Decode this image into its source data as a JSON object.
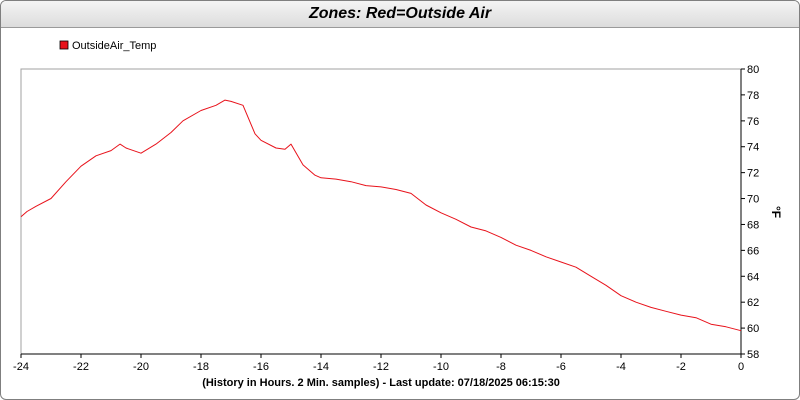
{
  "window": {
    "title": "Zones: Red=Outside Air"
  },
  "colors": {
    "series": "#e8121b",
    "grid": "#c8c8c8",
    "axis": "#000000"
  },
  "chart_data": {
    "type": "line",
    "title": "Zones: Red=Outside Air",
    "xlabel": "(History in Hours. 2 Min. samples) - Last update: 07/18/2025 06:15:30",
    "ylabel": "°F",
    "xlim": [
      -24,
      0
    ],
    "ylim": [
      58,
      80
    ],
    "x_ticks": [
      -24,
      -22,
      -20,
      -18,
      -16,
      -14,
      -12,
      -10,
      -8,
      -6,
      -4,
      -2,
      0
    ],
    "y_ticks": [
      58,
      60,
      62,
      64,
      66,
      68,
      70,
      72,
      74,
      76,
      78,
      80
    ],
    "grid": true,
    "legend_position": "top-left",
    "series": [
      {
        "name": "OutsideAir_Temp",
        "color": "#e8121b",
        "x": [
          -24,
          -23.8,
          -23.5,
          -23.0,
          -22.5,
          -22.0,
          -21.5,
          -21.0,
          -20.7,
          -20.5,
          -20.0,
          -19.5,
          -19.0,
          -18.6,
          -18.0,
          -17.5,
          -17.2,
          -17.0,
          -16.6,
          -16.2,
          -16.0,
          -15.5,
          -15.2,
          -15.0,
          -14.6,
          -14.2,
          -14.0,
          -13.5,
          -13.0,
          -12.5,
          -12.0,
          -11.5,
          -11.0,
          -10.5,
          -10.0,
          -9.5,
          -9.0,
          -8.5,
          -8.0,
          -7.5,
          -7.0,
          -6.5,
          -6.0,
          -5.5,
          -5.0,
          -4.5,
          -4.0,
          -3.5,
          -3.0,
          -2.5,
          -2.0,
          -1.5,
          -1.0,
          -0.5,
          0
        ],
        "values": [
          68.6,
          69.0,
          69.4,
          70.0,
          71.3,
          72.5,
          73.3,
          73.7,
          74.2,
          73.9,
          73.5,
          74.2,
          75.1,
          76.0,
          76.8,
          77.2,
          77.6,
          77.5,
          77.2,
          75.0,
          74.5,
          73.9,
          73.8,
          74.2,
          72.6,
          71.8,
          71.6,
          71.5,
          71.3,
          71.0,
          70.9,
          70.7,
          70.4,
          69.5,
          68.9,
          68.4,
          67.8,
          67.5,
          67.0,
          66.4,
          66.0,
          65.5,
          65.1,
          64.7,
          64.0,
          63.3,
          62.5,
          62.0,
          61.6,
          61.3,
          61.0,
          60.8,
          60.3,
          60.1,
          59.8
        ]
      }
    ]
  }
}
